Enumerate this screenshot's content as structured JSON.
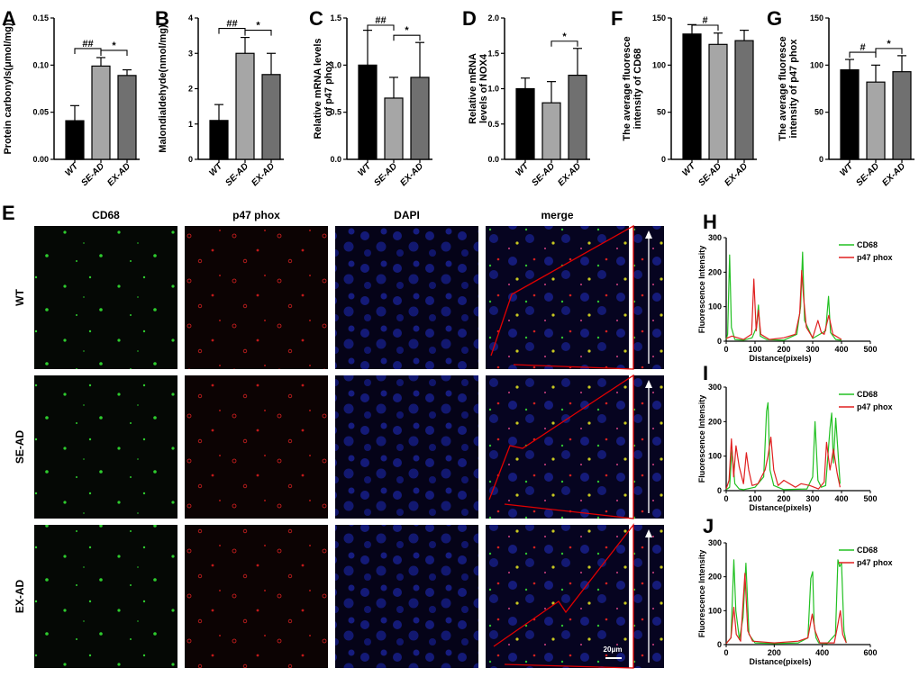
{
  "colors": {
    "wt": "#000000",
    "se": "#a6a6a6",
    "ex": "#707070",
    "cd68": "#22c022",
    "p47": "#e02020",
    "outline": "#e00000"
  },
  "chart_data": [
    {
      "type": "bar",
      "panel": "A",
      "title": "",
      "xlabel": "",
      "ylabel": "Protein carbonyls(μmol/mg)",
      "categories": [
        "WT",
        "SE-AD",
        "EX-AD"
      ],
      "values": [
        0.041,
        0.099,
        0.089
      ],
      "errors": [
        0.016,
        0.009,
        0.006
      ],
      "ylim": [
        0,
        0.15
      ],
      "yticks": [
        "0.00",
        "0.05",
        "0.10",
        "0.15"
      ],
      "sig": [
        {
          "from": 0,
          "to": 1,
          "label": "##"
        },
        {
          "from": 1,
          "to": 2,
          "label": "*"
        }
      ]
    },
    {
      "type": "bar",
      "panel": "B",
      "title": "",
      "xlabel": "",
      "ylabel": "Malondialdehyde(nmol/mg)",
      "categories": [
        "WT",
        "SE-AD",
        "EX-AD"
      ],
      "values": [
        1.1,
        3.0,
        2.4
      ],
      "errors": [
        0.45,
        0.45,
        0.6
      ],
      "ylim": [
        0,
        4
      ],
      "yticks": [
        "0",
        "1",
        "2",
        "3",
        "4"
      ],
      "sig": [
        {
          "from": 0,
          "to": 1,
          "label": "##"
        },
        {
          "from": 1,
          "to": 2,
          "label": "*"
        }
      ]
    },
    {
      "type": "bar",
      "panel": "C",
      "title": "",
      "xlabel": "",
      "ylabel": "Relative mRNA levels of p47 phox",
      "categories": [
        "WT",
        "SE-AD",
        "EX-AD"
      ],
      "values": [
        1.0,
        0.65,
        0.87
      ],
      "errors": [
        0.37,
        0.22,
        0.37
      ],
      "ylim": [
        0,
        1.5
      ],
      "yticks": [
        "0.0",
        "0.5",
        "1.0",
        "1.5"
      ],
      "sig": [
        {
          "from": 0,
          "to": 1,
          "label": "##"
        },
        {
          "from": 1,
          "to": 2,
          "label": "*"
        }
      ]
    },
    {
      "type": "bar",
      "panel": "D",
      "title": "",
      "xlabel": "",
      "ylabel": "Relative mRNA levels of NOX4",
      "categories": [
        "WT",
        "SE-AD",
        "EX-AD"
      ],
      "values": [
        1.0,
        0.8,
        1.19
      ],
      "errors": [
        0.15,
        0.3,
        0.38
      ],
      "ylim": [
        0,
        2.0
      ],
      "yticks": [
        "0.0",
        "0.5",
        "1.0",
        "1.5",
        "2.0"
      ],
      "sig": [
        {
          "from": 1,
          "to": 2,
          "label": "*"
        }
      ]
    },
    {
      "type": "bar",
      "panel": "F",
      "title": "",
      "xlabel": "",
      "ylabel": "The average fluoresce intensity of CD68",
      "categories": [
        "WT",
        "SE-AD",
        "EX-AD"
      ],
      "values": [
        133,
        122,
        126
      ],
      "errors": [
        10,
        12,
        11
      ],
      "ylim": [
        0,
        150
      ],
      "yticks": [
        "0",
        "50",
        "100",
        "150"
      ],
      "sig": [
        {
          "from": 0,
          "to": 1,
          "label": "#"
        }
      ]
    },
    {
      "type": "bar",
      "panel": "G",
      "title": "",
      "xlabel": "",
      "ylabel": "The average fluoresce intensity of p47 phox",
      "categories": [
        "WT",
        "SE-AD",
        "EX-AD"
      ],
      "values": [
        95,
        82,
        93
      ],
      "errors": [
        11,
        18,
        17
      ],
      "ylim": [
        0,
        150
      ],
      "yticks": [
        "0",
        "50",
        "100",
        "150"
      ],
      "sig": [
        {
          "from": 0,
          "to": 1,
          "label": "#"
        },
        {
          "from": 1,
          "to": 2,
          "label": "*"
        }
      ]
    },
    {
      "type": "line",
      "panel": "H",
      "title": "",
      "xlabel": "Distance(pixels)",
      "ylabel": "Fluorescence Intensity",
      "xlim": [
        0,
        500
      ],
      "ylim": [
        0,
        300
      ],
      "xticks": [
        "0",
        "100",
        "200",
        "300",
        "400",
        "500"
      ],
      "yticks": [
        "0",
        "100",
        "200",
        "300"
      ],
      "legend": [
        "CD68",
        "p47 phox"
      ],
      "series": [
        {
          "name": "CD68",
          "x": [
            0,
            5,
            12,
            18,
            30,
            60,
            90,
            105,
            112,
            118,
            140,
            200,
            245,
            258,
            265,
            272,
            300,
            345,
            355,
            362,
            380,
            400
          ],
          "y": [
            5,
            20,
            250,
            40,
            5,
            3,
            10,
            40,
            105,
            15,
            5,
            3,
            20,
            100,
            258,
            60,
            8,
            30,
            130,
            25,
            5,
            3
          ]
        },
        {
          "name": "p47 phox",
          "x": [
            0,
            20,
            60,
            88,
            96,
            104,
            112,
            120,
            150,
            200,
            240,
            255,
            262,
            268,
            278,
            300,
            318,
            330,
            340,
            356,
            370,
            400
          ],
          "y": [
            8,
            15,
            5,
            20,
            180,
            30,
            90,
            20,
            5,
            10,
            20,
            80,
            205,
            130,
            40,
            10,
            60,
            25,
            20,
            75,
            20,
            5
          ]
        }
      ]
    },
    {
      "type": "line",
      "panel": "I",
      "title": "",
      "xlabel": "Distance(pixels)",
      "ylabel": "Fluorescence Intensity",
      "xlim": [
        0,
        500
      ],
      "ylim": [
        0,
        300
      ],
      "xticks": [
        "0",
        "100",
        "200",
        "300",
        "400",
        "500"
      ],
      "yticks": [
        "0",
        "100",
        "200",
        "300"
      ],
      "legend": [
        "CD68",
        "p47 phox"
      ],
      "series": [
        {
          "name": "CD68",
          "x": [
            0,
            12,
            20,
            30,
            45,
            60,
            100,
            130,
            140,
            145,
            152,
            165,
            200,
            280,
            300,
            308,
            318,
            330,
            345,
            360,
            366,
            372,
            380,
            395
          ],
          "y": [
            3,
            10,
            120,
            20,
            5,
            3,
            10,
            40,
            230,
            255,
            60,
            15,
            3,
            5,
            40,
            200,
            30,
            10,
            15,
            180,
            225,
            80,
            210,
            20
          ]
        },
        {
          "name": "p47 phox",
          "x": [
            0,
            10,
            18,
            26,
            34,
            45,
            60,
            70,
            78,
            90,
            110,
            135,
            145,
            155,
            165,
            180,
            200,
            240,
            260,
            290,
            320,
            340,
            348,
            360,
            372,
            385,
            395
          ],
          "y": [
            5,
            30,
            150,
            40,
            130,
            70,
            20,
            110,
            60,
            15,
            20,
            60,
            100,
            155,
            60,
            15,
            30,
            10,
            20,
            15,
            5,
            25,
            140,
            60,
            120,
            50,
            10
          ]
        }
      ]
    },
    {
      "type": "line",
      "panel": "J",
      "title": "",
      "xlabel": "Distance(pixels)",
      "ylabel": "Fluorescence Intensity",
      "xlim": [
        0,
        600
      ],
      "ylim": [
        0,
        300
      ],
      "xticks": [
        "0",
        "200",
        "400",
        "600"
      ],
      "yticks": [
        "0",
        "100",
        "200",
        "300"
      ],
      "legend": [
        "CD68",
        "p47 phox"
      ],
      "series": [
        {
          "name": "CD68",
          "x": [
            0,
            20,
            32,
            40,
            55,
            70,
            82,
            95,
            120,
            200,
            300,
            340,
            352,
            360,
            366,
            374,
            385,
            420,
            455,
            465,
            472,
            480,
            490,
            500
          ],
          "y": [
            3,
            20,
            250,
            100,
            15,
            80,
            240,
            30,
            5,
            3,
            5,
            20,
            195,
            215,
            60,
            20,
            5,
            3,
            30,
            250,
            230,
            240,
            40,
            5
          ]
        },
        {
          "name": "p47 phox",
          "x": [
            0,
            20,
            32,
            42,
            60,
            78,
            90,
            110,
            200,
            300,
            340,
            358,
            370,
            390,
            450,
            465,
            475,
            485,
            500
          ],
          "y": [
            3,
            20,
            110,
            30,
            10,
            210,
            40,
            10,
            5,
            10,
            20,
            90,
            40,
            5,
            5,
            60,
            100,
            30,
            5
          ]
        }
      ]
    }
  ],
  "micrograph": {
    "panel_letter": "E",
    "columns": [
      "CD68",
      "p47 phox",
      "DAPI",
      "merge"
    ],
    "rows": [
      "WT",
      "SE-AD",
      "EX-AD"
    ],
    "scale_bar": "20μm"
  }
}
